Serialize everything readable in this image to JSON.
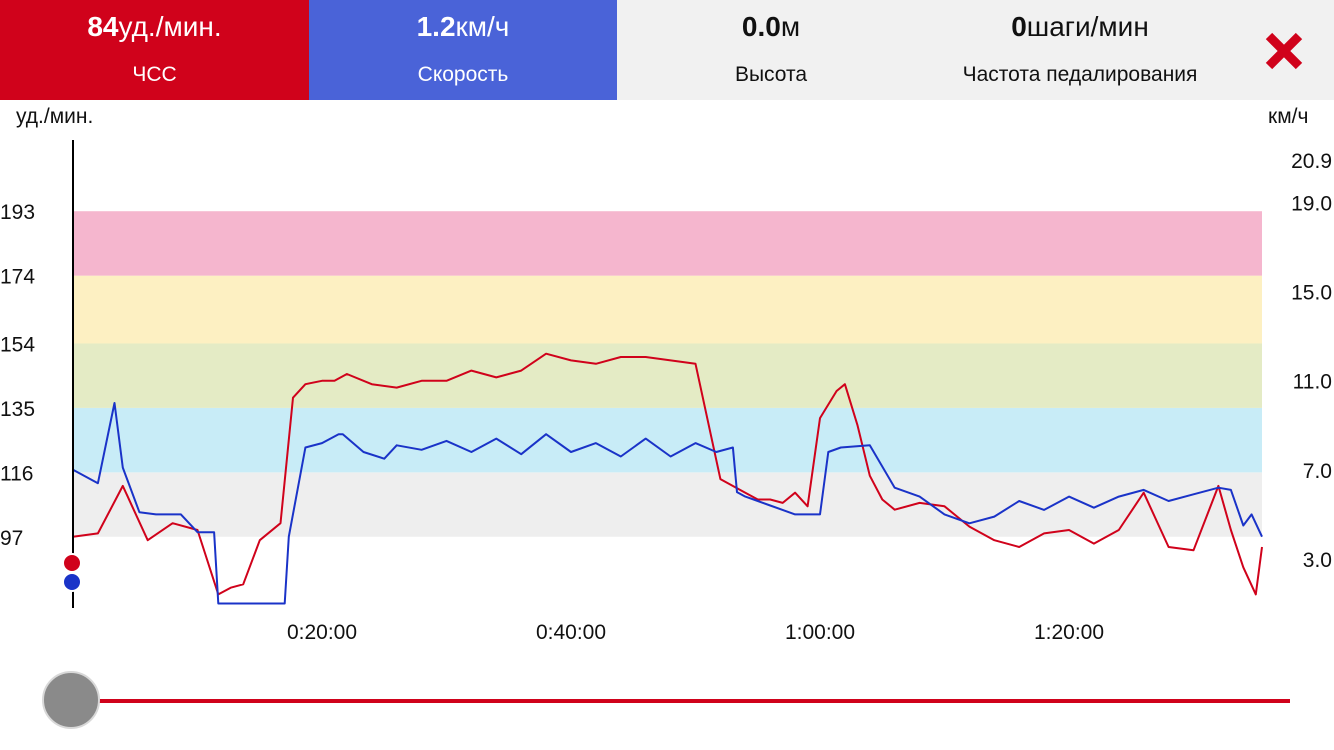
{
  "header": {
    "hr": {
      "value": "84",
      "unit": "уд./мин.",
      "label": "ЧСС",
      "color": "#d0021b"
    },
    "speed": {
      "value": "1.2",
      "unit": "км/ч",
      "label": "Скорость",
      "color": "#4a63d8"
    },
    "altitude": {
      "value": "0.0",
      "unit": "м",
      "label": "Высота"
    },
    "cadence": {
      "value": "0",
      "unit": "шаги/мин",
      "label": "Частота педалирования"
    },
    "close_icon": "close-icon"
  },
  "chart_data": {
    "type": "line",
    "left_axis": {
      "unit": "уд./мин.",
      "ticks": [
        97,
        116,
        135,
        154,
        174,
        193
      ],
      "range": [
        76,
        214
      ]
    },
    "right_axis": {
      "unit": "км/ч",
      "ticks": [
        "3.0",
        "7.0",
        "11.0",
        "15.0",
        "19.0",
        "20.9"
      ],
      "range": [
        0.8,
        21.8
      ]
    },
    "x_axis": {
      "ticks": [
        "0:20:00",
        "0:40:00",
        "1:00:00",
        "1:20:00"
      ],
      "tick_seconds": [
        1200,
        2400,
        3600,
        4800
      ],
      "range_seconds": [
        0,
        5730
      ]
    },
    "zones": [
      {
        "from": 97,
        "to": 116,
        "color": "#eeeeee"
      },
      {
        "from": 116,
        "to": 135,
        "color": "#c8ecf7"
      },
      {
        "from": 135,
        "to": 154,
        "color": "#e4ebc5"
      },
      {
        "from": 154,
        "to": 174,
        "color": "#fdf0c2"
      },
      {
        "from": 174,
        "to": 193,
        "color": "#f5b6ce"
      }
    ],
    "series": [
      {
        "name": "ЧСС",
        "axis": "left",
        "color": "#d0021b",
        "x_seconds": [
          0,
          120,
          240,
          360,
          480,
          600,
          700,
          760,
          820,
          900,
          1000,
          1060,
          1120,
          1200,
          1260,
          1320,
          1440,
          1560,
          1680,
          1800,
          1920,
          2040,
          2160,
          2280,
          2400,
          2520,
          2640,
          2760,
          2880,
          3000,
          3120,
          3240,
          3300,
          3360,
          3420,
          3480,
          3540,
          3600,
          3680,
          3720,
          3780,
          3840,
          3900,
          3960,
          4080,
          4200,
          4320,
          4440,
          4560,
          4680,
          4800,
          4920,
          5040,
          5160,
          5280,
          5400,
          5520,
          5580,
          5640,
          5700,
          5730
        ],
        "values": [
          97,
          98,
          112,
          96,
          101,
          99,
          80,
          82,
          83,
          96,
          101,
          138,
          142,
          143,
          143,
          145,
          142,
          141,
          143,
          143,
          146,
          144,
          146,
          151,
          149,
          148,
          150,
          150,
          149,
          148,
          114,
          110,
          108,
          108,
          107,
          110,
          106,
          132,
          140,
          142,
          130,
          115,
          108,
          105,
          107,
          106,
          100,
          96,
          94,
          98,
          99,
          95,
          99,
          110,
          94,
          93,
          112,
          99,
          88,
          80,
          94
        ]
      },
      {
        "name": "Скорость",
        "axis": "right",
        "color": "#1a33c8",
        "x_seconds": [
          0,
          120,
          200,
          240,
          320,
          400,
          520,
          600,
          680,
          700,
          800,
          900,
          1020,
          1040,
          1120,
          1200,
          1280,
          1300,
          1400,
          1500,
          1560,
          1680,
          1800,
          1920,
          2040,
          2160,
          2280,
          2400,
          2520,
          2640,
          2760,
          2880,
          3000,
          3100,
          3180,
          3200,
          3240,
          3300,
          3360,
          3480,
          3600,
          3640,
          3700,
          3840,
          3960,
          4080,
          4200,
          4320,
          4440,
          4560,
          4680,
          4800,
          4920,
          5040,
          5160,
          5280,
          5400,
          5520,
          5580,
          5640,
          5680,
          5730
        ],
        "values": [
          7.0,
          6.4,
          10.0,
          7.1,
          5.1,
          5.0,
          5.0,
          4.2,
          4.2,
          1.0,
          1.0,
          1.0,
          1.0,
          4.0,
          8.0,
          8.2,
          8.6,
          8.6,
          7.8,
          7.5,
          8.1,
          7.9,
          8.3,
          7.8,
          8.4,
          7.7,
          8.6,
          7.8,
          8.2,
          7.6,
          8.4,
          7.6,
          8.2,
          7.8,
          8.0,
          6.0,
          5.8,
          5.6,
          5.4,
          5.0,
          5.0,
          7.8,
          8.0,
          8.1,
          6.2,
          5.8,
          5.0,
          4.6,
          4.9,
          5.6,
          5.2,
          5.8,
          5.3,
          5.8,
          6.1,
          5.6,
          5.9,
          6.2,
          6.1,
          4.5,
          5.0,
          4.0
        ]
      }
    ],
    "slider": {
      "position": 0.0,
      "color": "#d0021b"
    }
  }
}
